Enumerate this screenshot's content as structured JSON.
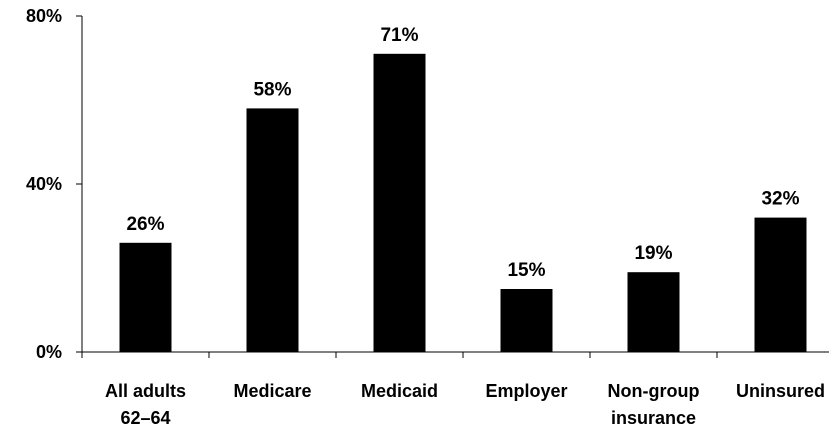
{
  "chart_data": {
    "type": "bar",
    "categories": [
      [
        "All adults",
        "62–64"
      ],
      [
        "Medicare"
      ],
      [
        "Medicaid"
      ],
      [
        "Employer"
      ],
      [
        "Non-group",
        "insurance"
      ],
      [
        "Uninsured"
      ]
    ],
    "values": [
      26,
      58,
      71,
      15,
      19,
      32
    ],
    "data_labels": [
      "26%",
      "58%",
      "71%",
      "15%",
      "19%",
      "32%"
    ],
    "title": "",
    "xlabel": "",
    "ylabel": "",
    "ylim": [
      0,
      80
    ],
    "yticks": [
      {
        "value": 0,
        "label": "0%"
      },
      {
        "value": 40,
        "label": "40%"
      },
      {
        "value": 80,
        "label": "80%"
      }
    ],
    "grid": false,
    "legend": "none",
    "bar_color": "#000000"
  }
}
